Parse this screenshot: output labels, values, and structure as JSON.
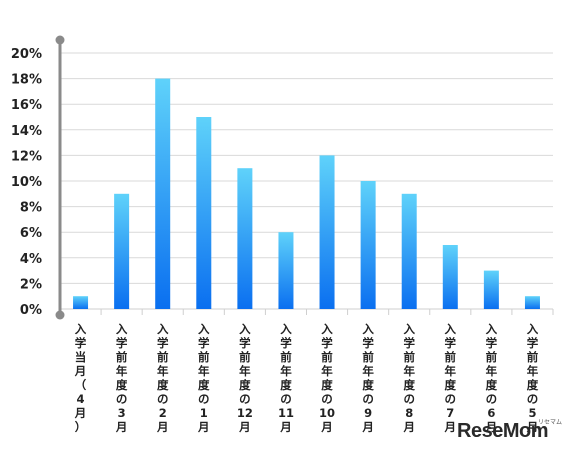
{
  "chart_data": {
    "type": "bar",
    "categories": [
      "入学当月（4月）",
      "入学前年度の3月",
      "入学前年度の2月",
      "入学前年度の1月",
      "入学前年度の12月",
      "入学前年度の11月",
      "入学前年度の10月",
      "入学前年度の9月",
      "入学前年度の8月",
      "入学前年度の7月",
      "入学前年度の6月",
      "入学前年度の5月"
    ],
    "values": [
      1,
      9,
      18,
      15,
      11,
      6,
      12,
      10,
      9,
      5,
      3,
      1
    ],
    "y_ticks": [
      "0%",
      "2%",
      "4%",
      "6%",
      "8%",
      "10%",
      "12%",
      "14%",
      "16%",
      "18%",
      "20%"
    ],
    "ylim": [
      0,
      20
    ],
    "grid": true,
    "bar_color_top": "#5fd2fa",
    "bar_color_bottom": "#0a6ff0"
  },
  "watermark": {
    "text": "ReseMom",
    "sub": "リセマム"
  }
}
